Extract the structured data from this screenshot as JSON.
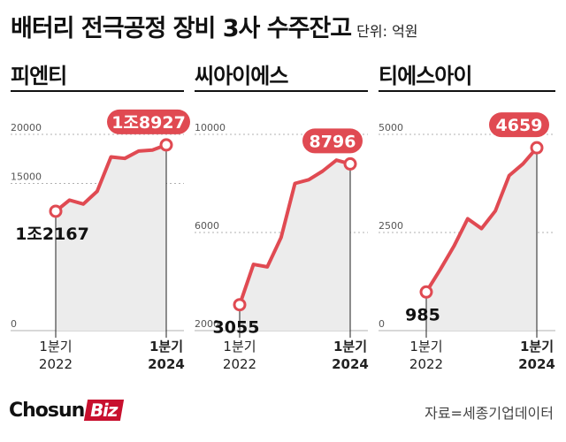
{
  "title": "배터리 전극공정 장비 3사 수주잔고",
  "unit": "단위: 억원",
  "source": "자료=세종기업데이터",
  "logo": {
    "main": "Chosun",
    "accent": "Biz"
  },
  "colors": {
    "line": "#e04a52",
    "fill": "#ececec",
    "grid": "#b0b0b0",
    "badge": "#e04a52"
  },
  "chart_data": [
    {
      "type": "area",
      "title": "피엔티",
      "ylim": [
        0,
        20000
      ],
      "ticks": [
        {
          "value": 20000,
          "label": "20000"
        },
        {
          "value": 15000,
          "label": "15000"
        },
        {
          "value": 0,
          "label": "0"
        }
      ],
      "x_labels": [
        [
          "1분기",
          "2022"
        ],
        [
          "1분기",
          "2024"
        ]
      ],
      "values": [
        12167,
        13300,
        12900,
        14200,
        17700,
        17550,
        18300,
        18400,
        18927
      ],
      "start_label": "1조2167",
      "end_label": "1조8927"
    },
    {
      "type": "area",
      "title": "씨아이에스",
      "ylim": [
        2000,
        10000
      ],
      "ticks": [
        {
          "value": 10000,
          "label": "10000"
        },
        {
          "value": 6000,
          "label": "6000"
        },
        {
          "value": 2000,
          "label": "2000"
        }
      ],
      "x_labels": [
        [
          "1분기",
          "2022"
        ],
        [
          "1분기",
          "2024"
        ]
      ],
      "values": [
        3055,
        4700,
        4600,
        5800,
        8000,
        8150,
        8500,
        8950,
        8796
      ],
      "start_label": "3055",
      "end_label": "8796"
    },
    {
      "type": "area",
      "title": "티에스아이",
      "ylim": [
        0,
        5000
      ],
      "ticks": [
        {
          "value": 5000,
          "label": "5000"
        },
        {
          "value": 2500,
          "label": "2500"
        },
        {
          "value": 0,
          "label": "0"
        }
      ],
      "x_labels": [
        [
          "1분기",
          "2022"
        ],
        [
          "1분기",
          "2024"
        ]
      ],
      "values": [
        985,
        1550,
        2150,
        2850,
        2600,
        3050,
        3950,
        4250,
        4659
      ],
      "start_label": "985",
      "end_label": "4659"
    }
  ]
}
